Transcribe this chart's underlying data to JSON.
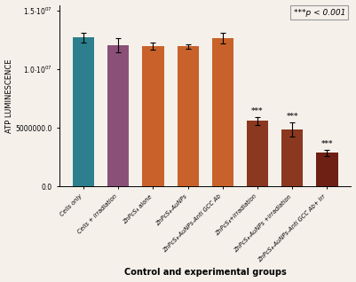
{
  "categories": [
    "Cells only",
    "Cells + irradiation",
    "ZnPcS₄ alone",
    "ZnPcS₄-AuNPs",
    "ZnPcS₄-AuNPs-Anti GCC Ab",
    "ZnPcS₄+irradiation",
    "ZnPcS₄-AuNPs +irradiation",
    "ZnPcS₄-AuNPs-Anti GCC Ab+ Irr"
  ],
  "values": [
    12700000.0,
    12050000.0,
    11950000.0,
    11950000.0,
    12650000.0,
    5600000.0,
    4850000.0,
    2850000.0
  ],
  "errors": [
    450000.0,
    600000.0,
    300000.0,
    200000.0,
    450000.0,
    350000.0,
    600000.0,
    300000.0
  ],
  "bar_colors": [
    "#2e7f8e",
    "#8b5078",
    "#c8622a",
    "#c8622a",
    "#c8622a",
    "#8b3820",
    "#8b3820",
    "#6e2015"
  ],
  "ylabel": "ATP LUMINESCENCE",
  "xlabel": "Control and experimental groups",
  "ylim": [
    0,
    15500000.0
  ],
  "yticks": [
    0,
    5000000,
    10000000.0,
    15000000.0
  ],
  "significance": [
    false,
    false,
    false,
    false,
    false,
    true,
    true,
    true
  ],
  "sig_label": "***",
  "legend_text": "***p < 0.001",
  "bg_color": "#f5f0ea"
}
